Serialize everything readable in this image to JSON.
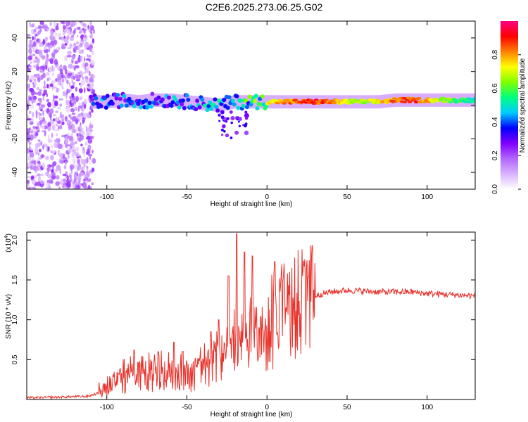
{
  "title": "C2E6.2025.273.06.25.G02",
  "chart_data": [
    {
      "type": "heatmap",
      "name": "spectrogram",
      "xlabel": "Height of straight line (km)",
      "ylabel": "Frequency (Hz)",
      "xlim": [
        -150,
        130
      ],
      "ylim": [
        -50,
        50
      ],
      "xticks": [
        -100,
        -50,
        0,
        50,
        100
      ],
      "yticks": [
        -40,
        -20,
        0,
        20,
        40
      ],
      "x_tick_labels": [
        "-100",
        "-50",
        "0",
        "50",
        "100"
      ],
      "y_tick_labels": [
        "-40",
        "-20",
        "0",
        "20",
        "40"
      ],
      "colorbar": {
        "label": "Normalized spectral amplitude",
        "range": [
          0,
          1
        ],
        "ticks": [
          0.0,
          0.2,
          0.4,
          0.6,
          0.8
        ],
        "tick_labels": [
          "0.0",
          "0.2",
          "0.4",
          "0.6",
          "0.8"
        ],
        "colors": [
          "#ffffff",
          "#d9b3ff",
          "#b266ff",
          "#7f00ff",
          "#0000ff",
          "#00ccff",
          "#00ff80",
          "#80ff00",
          "#ffff00",
          "#ff8000",
          "#ff0000",
          "#ff0080"
        ]
      },
      "ridge": {
        "x": [
          -110,
          -100,
          -90,
          -80,
          -70,
          -60,
          -50,
          -40,
          -30,
          -20,
          -10,
          0,
          10,
          20,
          30,
          40,
          50,
          60,
          70,
          80,
          90,
          100,
          110,
          120,
          130
        ],
        "freq": [
          2,
          2,
          3,
          2,
          3,
          3,
          2,
          1,
          0,
          2,
          2,
          2,
          2,
          2,
          2,
          2,
          2,
          2,
          2,
          3,
          3,
          3,
          3,
          3,
          3
        ],
        "amplitude": [
          0.45,
          0.5,
          0.45,
          0.5,
          0.45,
          0.5,
          0.5,
          0.55,
          0.55,
          0.55,
          0.7,
          0.8,
          0.85,
          0.9,
          0.95,
          0.9,
          0.75,
          0.7,
          0.8,
          0.9,
          0.95,
          0.85,
          0.7,
          0.6,
          0.55
        ]
      }
    },
    {
      "type": "line",
      "name": "snr",
      "xlabel": "Height of straight line (km)",
      "ylabel": "SNR (10 * v/v)",
      "y_scale_label": "(x10",
      "y_scale_exponent": "4",
      "xlim": [
        -150,
        130
      ],
      "ylim": [
        0,
        2.1
      ],
      "xticks": [
        -100,
        -50,
        0,
        50,
        100
      ],
      "yticks": [
        0.5,
        1.0,
        1.5,
        2.0
      ],
      "x_tick_labels": [
        "-100",
        "-50",
        "0",
        "50",
        "100"
      ],
      "y_tick_labels": [
        "0.5",
        "1.0",
        "1.5",
        "2.0"
      ],
      "color": "#e8312a",
      "x": [
        -150,
        -130,
        -112,
        -105,
        -100,
        -95,
        -90,
        -85,
        -80,
        -75,
        -70,
        -65,
        -60,
        -55,
        -50,
        -45,
        -40,
        -35,
        -30,
        -25,
        -20,
        -15,
        -10,
        -5,
        0,
        5,
        10,
        15,
        20,
        25,
        30,
        35,
        40,
        50,
        60,
        70,
        80,
        90,
        100,
        110,
        120,
        130
      ],
      "y": [
        0.02,
        0.03,
        0.04,
        0.08,
        0.15,
        0.2,
        0.25,
        0.28,
        0.3,
        0.28,
        0.3,
        0.3,
        0.3,
        0.28,
        0.3,
        0.32,
        0.35,
        0.4,
        0.5,
        0.6,
        0.7,
        0.6,
        0.8,
        0.7,
        0.8,
        0.9,
        1.0,
        1.1,
        1.2,
        1.25,
        1.3,
        1.33,
        1.35,
        1.37,
        1.36,
        1.35,
        1.35,
        1.35,
        1.33,
        1.32,
        1.31,
        1.3
      ],
      "spikes": [
        {
          "x": -83,
          "y": 0.62
        },
        {
          "x": -68,
          "y": 0.6
        },
        {
          "x": -58,
          "y": 0.72
        },
        {
          "x": -53,
          "y": 0.6
        },
        {
          "x": -35,
          "y": 0.85
        },
        {
          "x": -30,
          "y": 1.0
        },
        {
          "x": -24,
          "y": 1.55
        },
        {
          "x": -19,
          "y": 2.08
        },
        {
          "x": -14,
          "y": 1.85
        },
        {
          "x": -9,
          "y": 1.8
        },
        {
          "x": -5,
          "y": 0.9
        },
        {
          "x": 5,
          "y": 1.73
        },
        {
          "x": 12,
          "y": 1.15
        }
      ]
    }
  ]
}
